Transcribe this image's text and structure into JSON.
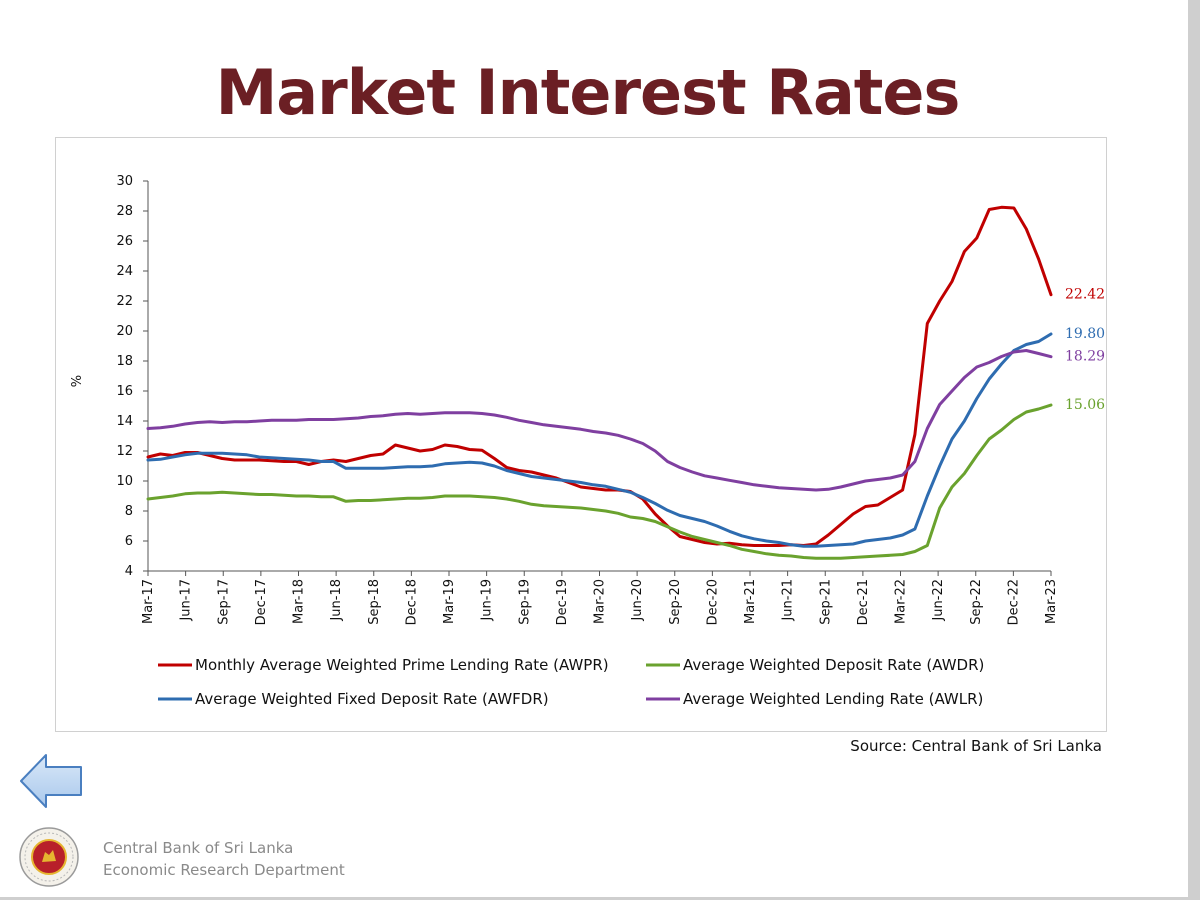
{
  "title": "Market Interest Rates",
  "source": "Source: Central Bank of Sri Lanka",
  "footer": {
    "org_line1": "Central Bank of Sri Lanka",
    "org_line2": "Economic Research Department"
  },
  "icons": {
    "back": "left-arrow-icon",
    "seal": "cbsl-seal-icon"
  },
  "chart_data": {
    "type": "line",
    "ylabel": "%",
    "xlabel": "",
    "ylim": [
      4,
      30
    ],
    "yticks": [
      4,
      6,
      8,
      10,
      12,
      14,
      16,
      18,
      20,
      22,
      24,
      26,
      28,
      30
    ],
    "x_tick_labels": [
      "Mar-17",
      "Jun-17",
      "Sep-17",
      "Dec-17",
      "Mar-18",
      "Jun-18",
      "Sep-18",
      "Dec-18",
      "Mar-19",
      "Jun-19",
      "Sep-19",
      "Dec-19",
      "Mar-20",
      "Jun-20",
      "Sep-20",
      "Dec-20",
      "Mar-21",
      "Jun-21",
      "Sep-21",
      "Dec-21",
      "Mar-22",
      "Jun-22",
      "Sep-22",
      "Dec-22",
      "Mar-23"
    ],
    "x_start": "2017-03",
    "x_end": "2023-03",
    "grid": false,
    "legend_position": "bottom",
    "series": [
      {
        "name": "Monthly Average Weighted Prime Lending Rate (AWPR)",
        "color": "#c00000",
        "end_label": "22.42",
        "values": [
          11.6,
          11.8,
          11.7,
          11.9,
          11.9,
          11.7,
          11.5,
          11.4,
          11.4,
          11.4,
          11.35,
          11.3,
          11.3,
          11.1,
          11.3,
          11.4,
          11.3,
          11.5,
          11.7,
          11.8,
          12.4,
          12.2,
          12.0,
          12.1,
          12.4,
          12.3,
          12.1,
          12.05,
          11.5,
          10.9,
          10.7,
          10.6,
          10.4,
          10.2,
          9.9,
          9.6,
          9.5,
          9.4,
          9.4,
          9.3,
          8.8,
          7.8,
          7.0,
          6.3,
          6.1,
          5.9,
          5.8,
          5.85,
          5.75,
          5.7,
          5.7,
          5.7,
          5.75,
          5.7,
          5.8,
          6.4,
          7.1,
          7.8,
          8.3,
          8.4,
          8.9,
          9.4,
          13.1,
          20.5,
          22.0,
          23.3,
          25.3,
          26.2,
          28.1,
          28.25,
          28.2,
          26.8,
          24.8,
          22.42
        ]
      },
      {
        "name": "Average Weighted Deposit Rate (AWDR)",
        "color": "#6aa22e",
        "end_label": "15.06",
        "values": [
          8.8,
          8.9,
          9.0,
          9.15,
          9.2,
          9.2,
          9.25,
          9.2,
          9.15,
          9.1,
          9.1,
          9.05,
          9.0,
          9.0,
          8.95,
          8.95,
          8.65,
          8.7,
          8.7,
          8.75,
          8.8,
          8.85,
          8.85,
          8.9,
          9.0,
          9.0,
          9.0,
          8.95,
          8.9,
          8.8,
          8.65,
          8.45,
          8.35,
          8.3,
          8.25,
          8.2,
          8.1,
          8.0,
          7.85,
          7.6,
          7.5,
          7.3,
          6.95,
          6.6,
          6.3,
          6.1,
          5.9,
          5.7,
          5.45,
          5.3,
          5.15,
          5.05,
          5.0,
          4.9,
          4.85,
          4.85,
          4.85,
          4.9,
          4.95,
          5.0,
          5.05,
          5.1,
          5.3,
          5.7,
          8.2,
          9.6,
          10.5,
          11.7,
          12.8,
          13.4,
          14.1,
          14.6,
          14.8,
          15.06
        ]
      },
      {
        "name": "Average Weighted Fixed Deposit Rate (AWFDR)",
        "color": "#2e6cb0",
        "end_label": "19.80",
        "values": [
          11.4,
          11.45,
          11.6,
          11.75,
          11.85,
          11.85,
          11.85,
          11.8,
          11.75,
          11.6,
          11.55,
          11.5,
          11.45,
          11.4,
          11.3,
          11.3,
          10.85,
          10.85,
          10.85,
          10.85,
          10.9,
          10.95,
          10.95,
          11.0,
          11.15,
          11.2,
          11.25,
          11.2,
          11.0,
          10.7,
          10.5,
          10.3,
          10.2,
          10.1,
          10.0,
          9.9,
          9.75,
          9.65,
          9.45,
          9.25,
          8.9,
          8.5,
          8.05,
          7.7,
          7.5,
          7.3,
          7.0,
          6.65,
          6.35,
          6.15,
          6.0,
          5.9,
          5.75,
          5.65,
          5.65,
          5.7,
          5.75,
          5.8,
          6.0,
          6.1,
          6.2,
          6.4,
          6.8,
          9.0,
          11.0,
          12.8,
          14.0,
          15.5,
          16.8,
          17.8,
          18.7,
          19.1,
          19.3,
          19.8
        ]
      },
      {
        "name": "Average Weighted Lending Rate (AWLR)",
        "color": "#7f3fa0",
        "end_label": "18.29",
        "values": [
          13.5,
          13.55,
          13.65,
          13.8,
          13.9,
          13.95,
          13.9,
          13.95,
          13.95,
          14.0,
          14.05,
          14.05,
          14.05,
          14.1,
          14.1,
          14.1,
          14.15,
          14.2,
          14.3,
          14.35,
          14.45,
          14.5,
          14.45,
          14.5,
          14.55,
          14.55,
          14.55,
          14.5,
          14.4,
          14.25,
          14.05,
          13.9,
          13.75,
          13.65,
          13.55,
          13.45,
          13.3,
          13.2,
          13.05,
          12.8,
          12.5,
          12.0,
          11.3,
          10.9,
          10.6,
          10.35,
          10.2,
          10.05,
          9.9,
          9.75,
          9.65,
          9.55,
          9.5,
          9.45,
          9.4,
          9.45,
          9.6,
          9.8,
          10.0,
          10.1,
          10.2,
          10.4,
          11.3,
          13.5,
          15.1,
          16.0,
          16.9,
          17.6,
          17.9,
          18.3,
          18.6,
          18.7,
          18.5,
          18.29
        ]
      }
    ]
  }
}
